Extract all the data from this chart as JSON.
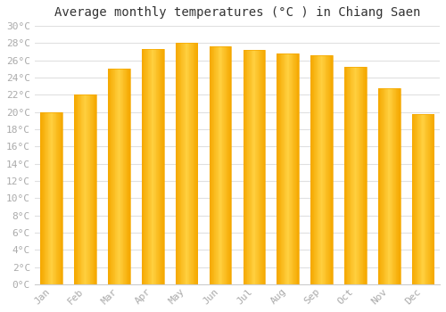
{
  "title": "Average monthly temperatures (°C ) in Chiang Saen",
  "months": [
    "Jan",
    "Feb",
    "Mar",
    "Apr",
    "May",
    "Jun",
    "Jul",
    "Aug",
    "Sep",
    "Oct",
    "Nov",
    "Dec"
  ],
  "temperatures": [
    20,
    22,
    25,
    27.3,
    28,
    27.6,
    27.2,
    26.8,
    26.6,
    25.2,
    22.8,
    19.8
  ],
  "bar_color_center": "#FFD040",
  "bar_color_edge": "#F5A800",
  "ylim": [
    0,
    30
  ],
  "ytick_step": 2,
  "background_color": "#FFFFFF",
  "plot_bg_color": "#FFFFFF",
  "grid_color": "#E0E0E0",
  "title_fontsize": 10,
  "tick_fontsize": 8,
  "tick_label_color": "#AAAAAA",
  "font_family": "monospace",
  "bar_width": 0.65
}
